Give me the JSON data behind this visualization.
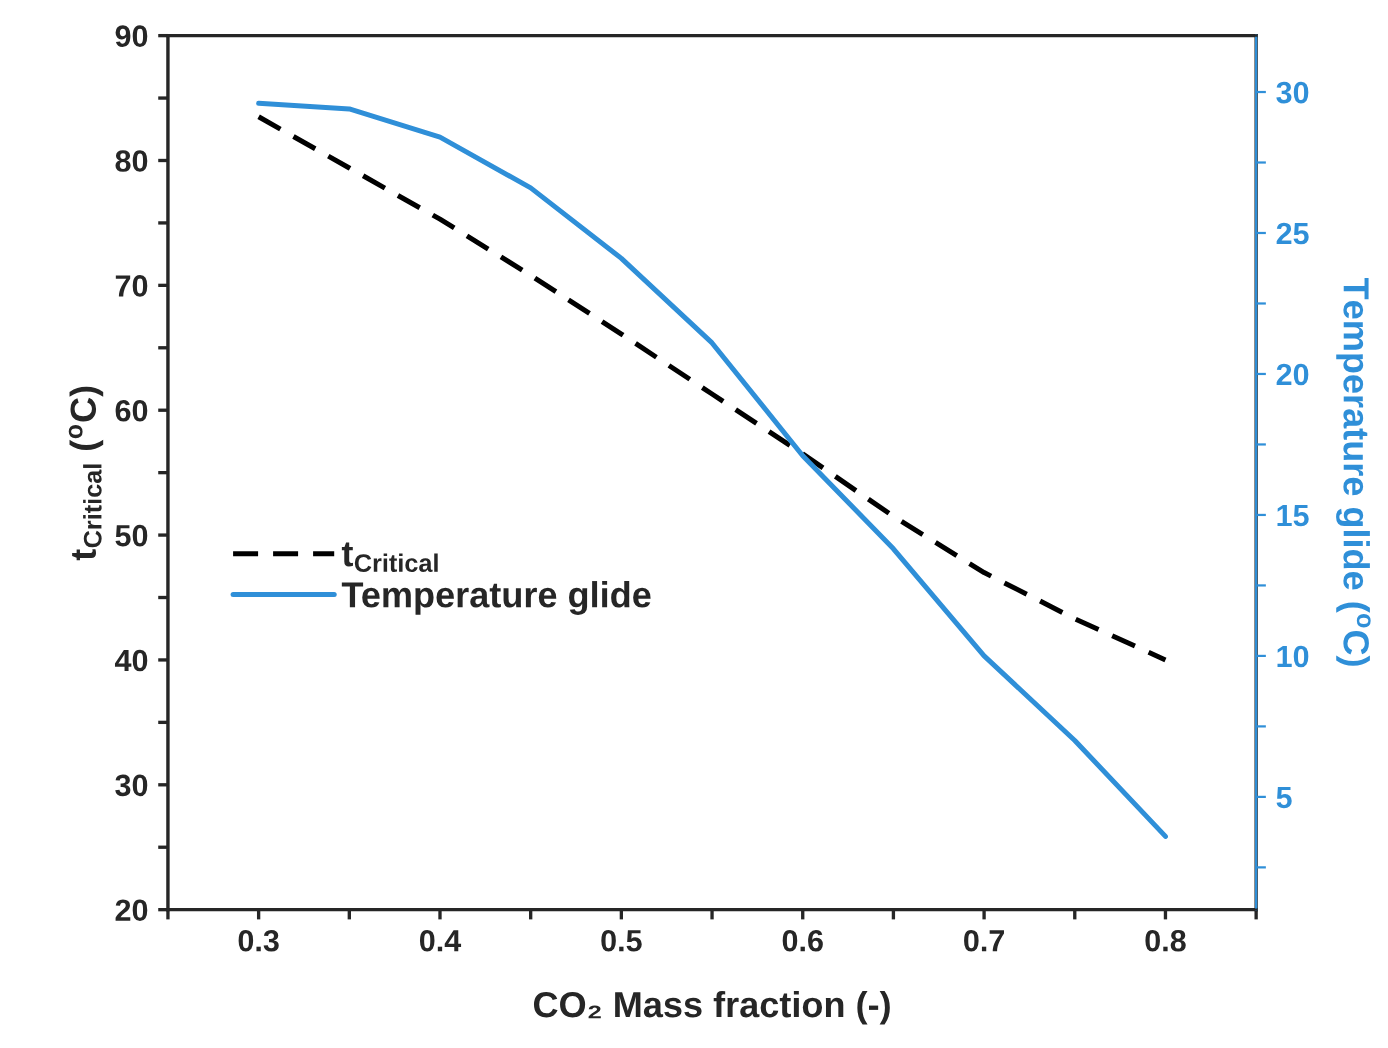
{
  "chart_data": {
    "type": "line",
    "xlabel": "CO₂ Mass fraction (-)",
    "ylabel": "t$_{Critical}$ ($^{o}$C)",
    "y2label": "Temperature glide ($^{o}$C)",
    "x": [
      0.3,
      0.35,
      0.4,
      0.45,
      0.5,
      0.55,
      0.6,
      0.65,
      0.7,
      0.75,
      0.8
    ],
    "series": [
      {
        "name": "t$_{Critical}$",
        "color": "#000000",
        "line_style": "dashed",
        "values": [
          83.5,
          79.4,
          75.3,
          70.8,
          66.1,
          61.3,
          56.5,
          51.5,
          47.0,
          43.3,
          40.0
        ]
      },
      {
        "name": "Temperature glide",
        "color": "#2f8fd8",
        "line_style": "solid",
        "axis": "y2",
        "values": [
          29.6,
          29.4,
          28.4,
          26.6,
          24.1,
          21.1,
          17.1,
          13.8,
          10.0,
          7.0,
          3.6
        ]
      }
    ],
    "xlim": [
      0.25,
      0.85
    ],
    "xticks": [
      {
        "value": 0.25,
        "label": null
      },
      0.3,
      {
        "value": 0.35,
        "label": null
      },
      0.4,
      {
        "value": 0.45,
        "label": null
      },
      0.5,
      {
        "value": 0.55,
        "label": null
      },
      0.6,
      {
        "value": 0.65,
        "label": null
      },
      0.7,
      {
        "value": 0.75,
        "label": null
      },
      0.8,
      {
        "value": 0.85,
        "label": null
      }
    ],
    "ylim": [
      20,
      90
    ],
    "yticks": [
      20,
      {
        "value": 25,
        "label": null
      },
      30,
      {
        "value": 35,
        "label": null
      },
      40,
      {
        "value": 45,
        "label": null
      },
      50,
      {
        "value": 55,
        "label": null
      },
      60,
      {
        "value": 65,
        "label": null
      },
      70,
      {
        "value": 75,
        "label": null
      },
      80,
      {
        "value": 85,
        "label": null
      },
      90
    ],
    "y2lim": [
      1,
      32
    ],
    "y2ticks": [
      {
        "value": 2.5,
        "label": null
      },
      5,
      {
        "value": 7.5,
        "label": null
      },
      10,
      {
        "value": 12.5,
        "label": null
      },
      15,
      {
        "value": 17.5,
        "label": null
      },
      20,
      {
        "value": 22.5,
        "label": null
      },
      25,
      {
        "value": 27.5,
        "label": null
      },
      30
    ],
    "legend": "left",
    "grid": false,
    "marker": "none"
  }
}
